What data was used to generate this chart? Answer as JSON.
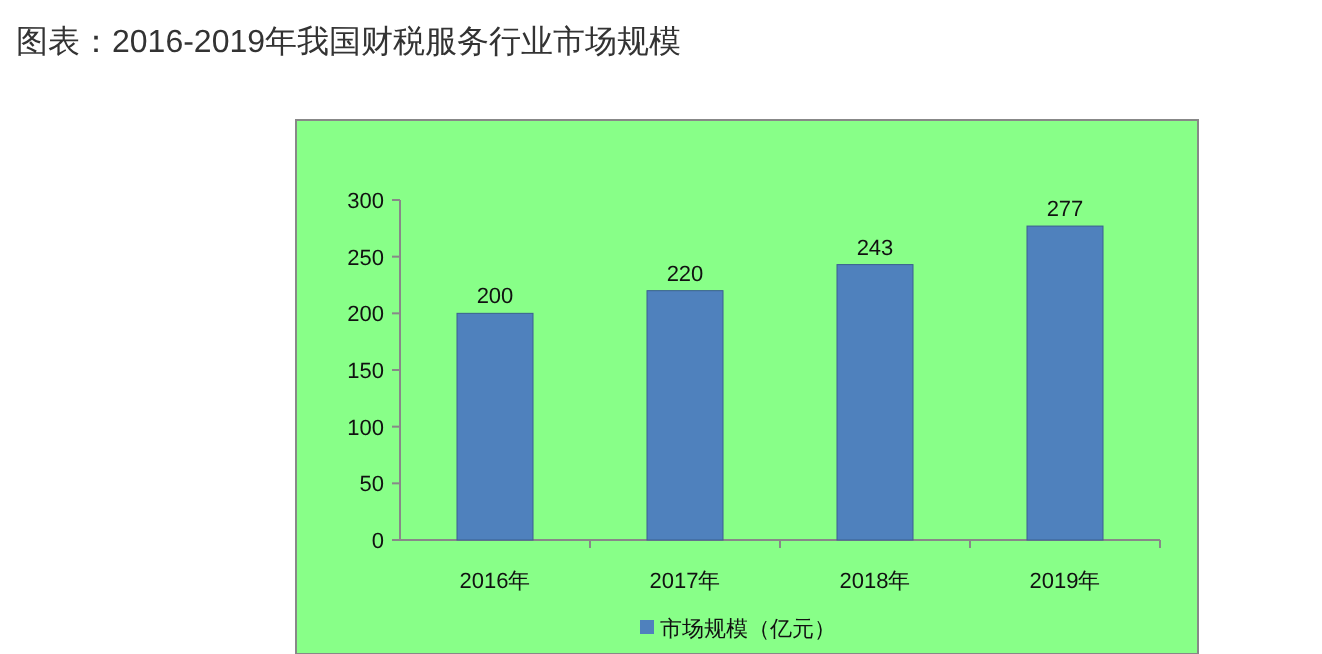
{
  "chart_data": {
    "type": "bar",
    "title": "图表：2016-2019年我国财税服务行业市场规模",
    "categories": [
      "2016年",
      "2017年",
      "2018年",
      "2019年"
    ],
    "series": [
      {
        "name": "市场规模（亿元）",
        "color": "#4f81bd",
        "values": [
          200,
          220,
          243,
          277
        ]
      }
    ],
    "ylim": [
      0,
      300
    ],
    "yticks": [
      0,
      50,
      100,
      150,
      200,
      250,
      300
    ],
    "data_labels": true,
    "legend": "bottom"
  }
}
